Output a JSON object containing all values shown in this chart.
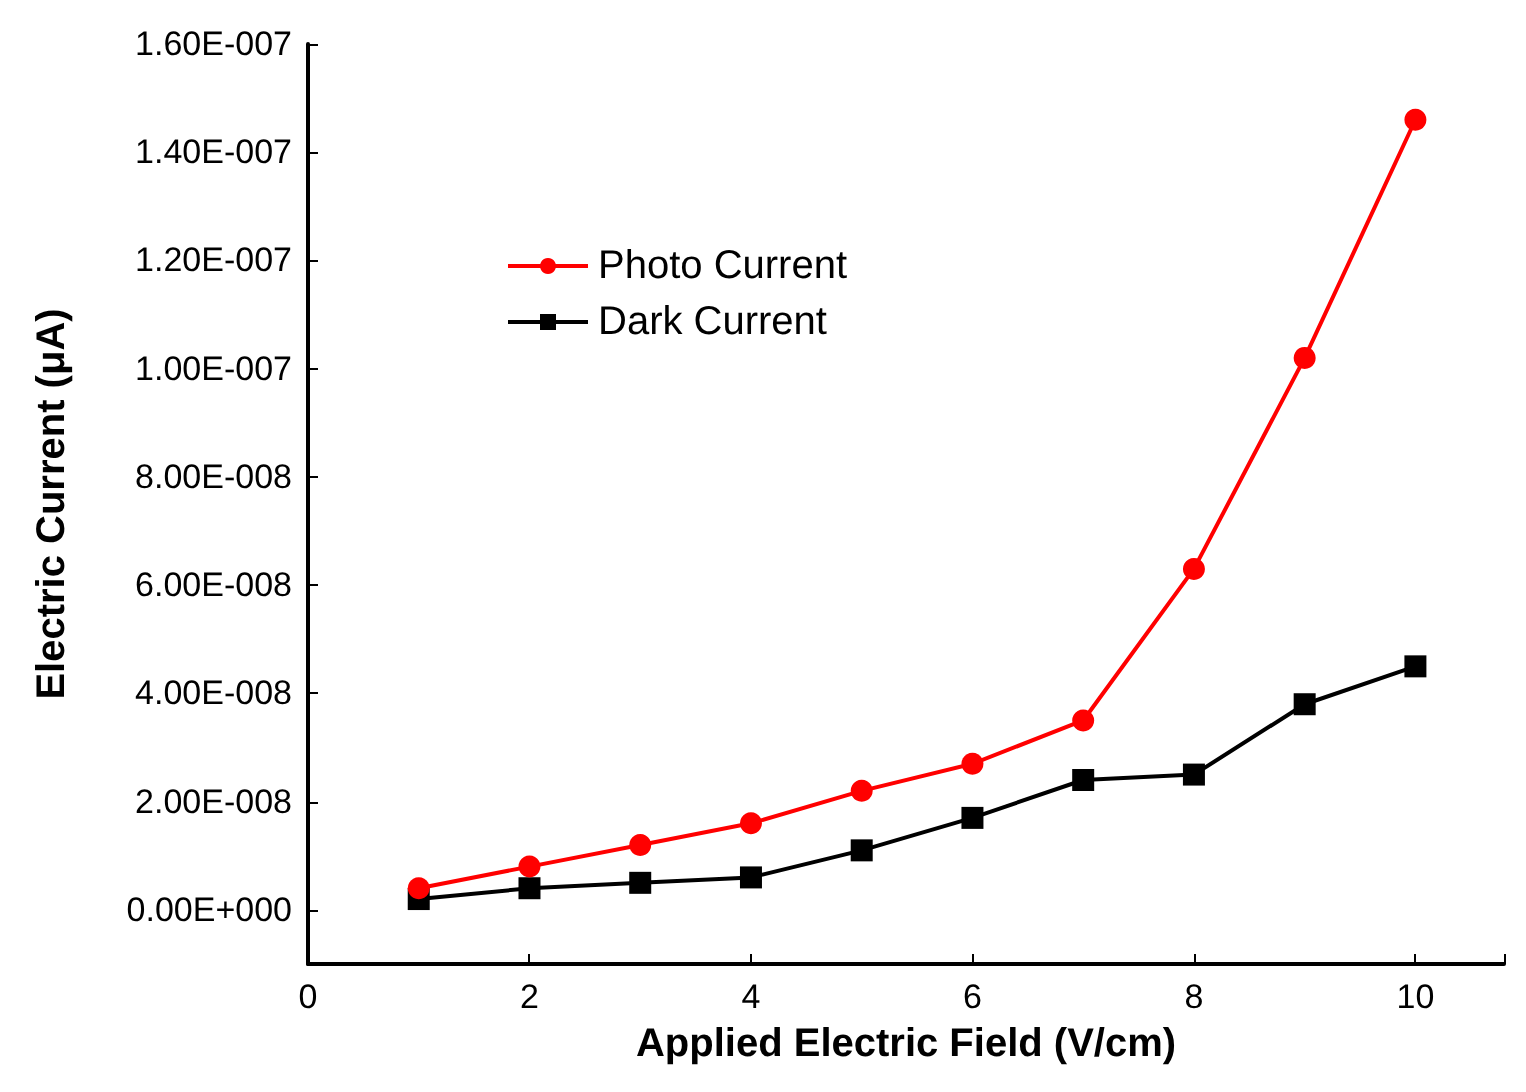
{
  "chart_data": {
    "type": "line",
    "xlabel": "Applied Electric Field (V/cm)",
    "ylabel": "Electric Current (μA)",
    "x": [
      1,
      2,
      3,
      4,
      5,
      6,
      7,
      8,
      9,
      10
    ],
    "series": [
      {
        "name": "Photo Current",
        "color": "#ff0000",
        "marker": "circle",
        "values": [
          4e-09,
          8e-09,
          1.2e-08,
          1.6e-08,
          2.2e-08,
          2.7e-08,
          3.5e-08,
          6.3e-08,
          1.02e-07,
          1.46e-07
        ]
      },
      {
        "name": "Dark Current",
        "color": "#000000",
        "marker": "square",
        "values": [
          2e-09,
          4e-09,
          5e-09,
          6e-09,
          1.1e-08,
          1.7e-08,
          2.4e-08,
          2.5e-08,
          3.8e-08,
          4.5e-08
        ]
      }
    ],
    "xlim": [
      0,
      10.8
    ],
    "xticks": [
      0,
      2,
      4,
      6,
      8,
      10
    ],
    "ylim": [
      -1e-08,
      1.6e-07
    ],
    "yticks": [
      {
        "value": 0,
        "label": "0.00E+000"
      },
      {
        "value": 2e-08,
        "label": "2.00E-008"
      },
      {
        "value": 4e-08,
        "label": "4.00E-008"
      },
      {
        "value": 6e-08,
        "label": "6.00E-008"
      },
      {
        "value": 8e-08,
        "label": "8.00E-008"
      },
      {
        "value": 1e-07,
        "label": "1.00E-007"
      },
      {
        "value": 1.2e-07,
        "label": "1.20E-007"
      },
      {
        "value": 1.4e-07,
        "label": "1.40E-007"
      },
      {
        "value": 1.6e-07,
        "label": "1.60E-007"
      }
    ],
    "grid": false,
    "legend": "top left",
    "line_style": "solid"
  }
}
